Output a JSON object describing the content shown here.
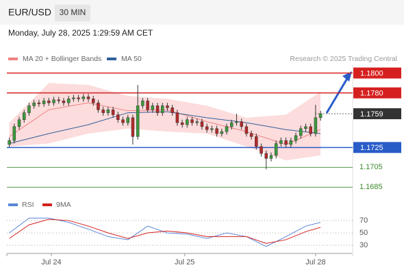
{
  "header": {
    "symbol": "EUR/USD",
    "timeframe": "30 MIN",
    "timestamp": "Monday, July 28, 2025 1:29:59 AM CET",
    "credit": "Research © 2025 Trading Central"
  },
  "chart_data": {
    "type": "candlestick",
    "categories": [
      null,
      null,
      null,
      null,
      null,
      null,
      null,
      null,
      null,
      null,
      null,
      null,
      null,
      null,
      null,
      null,
      null,
      null,
      null,
      null,
      null,
      null,
      null,
      null,
      null,
      null,
      null,
      null,
      null,
      null,
      null,
      null,
      null,
      null,
      null,
      null,
      null,
      null,
      null,
      null,
      null,
      null,
      null,
      null,
      null,
      null,
      null,
      null,
      null,
      null,
      null,
      null,
      null,
      null,
      null,
      null,
      null,
      null,
      null,
      null,
      null,
      null,
      null,
      null
    ],
    "open": [
      1.1728,
      1.1732,
      1.1746,
      1.1753,
      1.176,
      1.1767,
      1.177,
      1.1769,
      1.1772,
      1.177,
      1.1773,
      1.1772,
      1.177,
      1.1774,
      1.1775,
      1.1774,
      1.1776,
      1.1774,
      1.177,
      1.1763,
      1.176,
      1.1763,
      1.1758,
      1.1753,
      1.175,
      1.1755,
      1.1736,
      1.1767,
      1.1772,
      1.1763,
      1.1767,
      1.176,
      1.1767,
      1.1765,
      1.176,
      1.175,
      1.1748,
      1.1753,
      1.175,
      1.1751,
      1.1746,
      1.1743,
      1.1744,
      1.1739,
      1.1741,
      1.1746,
      1.175,
      1.1751,
      1.1746,
      1.1739,
      1.1736,
      1.1726,
      1.1719,
      1.1714,
      1.1717,
      1.1729,
      1.1732,
      1.1728,
      1.1732,
      1.1737,
      1.1744,
      1.1746,
      1.1739,
      1.1755
    ],
    "high": [
      1.1735,
      1.1749,
      1.1756,
      1.1763,
      1.177,
      1.1773,
      1.1773,
      1.1775,
      1.1775,
      1.1776,
      1.1776,
      1.1775,
      1.1777,
      1.1778,
      1.1778,
      1.1779,
      1.1779,
      1.1777,
      1.1773,
      1.1766,
      1.1766,
      1.1766,
      1.1761,
      1.1756,
      1.1758,
      1.1758,
      1.1788,
      1.1775,
      1.1775,
      1.177,
      1.177,
      1.177,
      1.177,
      1.1768,
      1.1763,
      1.1753,
      1.1756,
      1.1756,
      1.1754,
      1.1754,
      1.1749,
      1.1747,
      1.1747,
      1.1744,
      1.1749,
      1.1753,
      1.1759,
      1.1754,
      1.1749,
      1.1742,
      1.1739,
      1.1729,
      1.1722,
      1.172,
      1.1732,
      1.1735,
      1.1735,
      1.1735,
      1.174,
      1.1747,
      1.1749,
      1.1749,
      1.1768,
      1.1762
    ],
    "low": [
      1.1725,
      1.1729,
      1.1743,
      1.175,
      1.1757,
      1.1764,
      1.1766,
      1.1766,
      1.1767,
      1.1767,
      1.1769,
      1.1767,
      1.1767,
      1.1771,
      1.1771,
      1.1771,
      1.1771,
      1.1767,
      1.176,
      1.1757,
      1.1757,
      1.1755,
      1.175,
      1.1747,
      1.1747,
      1.1728,
      1.1733,
      1.1764,
      1.176,
      1.176,
      1.1757,
      1.1757,
      1.1762,
      1.1757,
      1.1747,
      1.1745,
      1.1745,
      1.1747,
      1.1747,
      1.1743,
      1.174,
      1.174,
      1.1736,
      1.1736,
      1.1738,
      1.1743,
      1.1747,
      1.1743,
      1.1736,
      1.1733,
      1.1723,
      1.1716,
      1.1703,
      1.1711,
      1.1714,
      1.1726,
      1.1725,
      1.1725,
      1.1729,
      1.1734,
      1.1741,
      1.1736,
      1.1736,
      1.1752
    ],
    "close": [
      1.1732,
      1.1746,
      1.1753,
      1.176,
      1.1767,
      1.177,
      1.1769,
      1.1772,
      1.177,
      1.1773,
      1.1772,
      1.177,
      1.1774,
      1.1775,
      1.1774,
      1.1776,
      1.1774,
      1.177,
      1.1763,
      1.176,
      1.1763,
      1.1758,
      1.1753,
      1.175,
      1.1755,
      1.1736,
      1.1767,
      1.1772,
      1.1763,
      1.1767,
      1.176,
      1.1767,
      1.1765,
      1.176,
      1.175,
      1.1748,
      1.1753,
      1.175,
      1.1751,
      1.1746,
      1.1743,
      1.1744,
      1.1739,
      1.1741,
      1.1746,
      1.175,
      1.1751,
      1.1746,
      1.1739,
      1.1736,
      1.1726,
      1.1719,
      1.1714,
      1.1717,
      1.1729,
      1.1732,
      1.1728,
      1.1732,
      1.1737,
      1.1744,
      1.1746,
      1.1739,
      1.1755,
      1.1759
    ],
    "up_color": "#3c9a3c",
    "down_color": "#b22a2a",
    "xlim": [
      -0.5,
      69.5
    ],
    "ylim": [
      1.1679,
      1.1808
    ],
    "xticks": [
      {
        "value": 8.5,
        "label": "Jul 24"
      },
      {
        "value": 35.5,
        "label": "Jul 25"
      },
      {
        "value": 62,
        "label": "Jul 28"
      }
    ],
    "overlays": {
      "x": [
        0,
        8,
        16,
        24,
        32,
        40,
        48,
        56,
        63
      ],
      "series": [
        {
          "name": "MA 20 + Bollinger Bands",
          "color": "#f08080",
          "values": [
            1.1736,
            1.1763,
            1.177,
            1.1762,
            1.1763,
            1.1751,
            1.1741,
            1.1728,
            1.1743
          ]
        },
        {
          "name": "MA 50",
          "color": "#2f5f9a",
          "values": [
            1.1729,
            1.1739,
            1.1748,
            1.176,
            1.1761,
            1.1755,
            1.175,
            1.1743,
            1.1739
          ]
        }
      ],
      "band": {
        "color": "#fcdcdc",
        "upper": [
          1.175,
          1.179,
          1.1788,
          1.1777,
          1.1774,
          1.1767,
          1.1755,
          1.1758,
          1.1781
        ],
        "lower": [
          1.1726,
          1.1729,
          1.1739,
          1.1744,
          1.1741,
          1.1739,
          1.1726,
          1.1712,
          1.1717
        ]
      }
    },
    "levels": [
      {
        "value": 1.18,
        "label": "1.1800",
        "color": "#d62020",
        "style": "box"
      },
      {
        "value": 1.178,
        "label": "1.1780",
        "color": "#d62020",
        "style": "box"
      },
      {
        "value": 1.1759,
        "label": "1.1759",
        "color": "#333333",
        "style": "current"
      },
      {
        "value": 1.1725,
        "label": "1.1725",
        "color": "#2a5cc8",
        "style": "box"
      },
      {
        "value": 1.1705,
        "label": "1.1705",
        "color": "#3a8a2a",
        "style": "text"
      },
      {
        "value": 1.1685,
        "label": "1.1685",
        "color": "#3a8a2a",
        "style": "text"
      }
    ],
    "rsi": {
      "x": [
        0,
        4,
        8,
        12,
        16,
        20,
        24,
        28,
        32,
        36,
        40,
        44,
        48,
        52,
        56,
        60,
        63
      ],
      "ylim": [
        19,
        81
      ],
      "yticks": [
        70,
        50,
        30
      ],
      "series": [
        {
          "name": "RSI",
          "color": "#5b86d6",
          "values": [
            50,
            74,
            74,
            67,
            56,
            44,
            39,
            61,
            50,
            48,
            41,
            50,
            44,
            28,
            44,
            61,
            67
          ]
        },
        {
          "name": "9MA",
          "color": "#d62020",
          "values": [
            41,
            63,
            72,
            70,
            61,
            50,
            41,
            50,
            53,
            50,
            44,
            44,
            44,
            33,
            39,
            52,
            59
          ]
        }
      ]
    }
  }
}
